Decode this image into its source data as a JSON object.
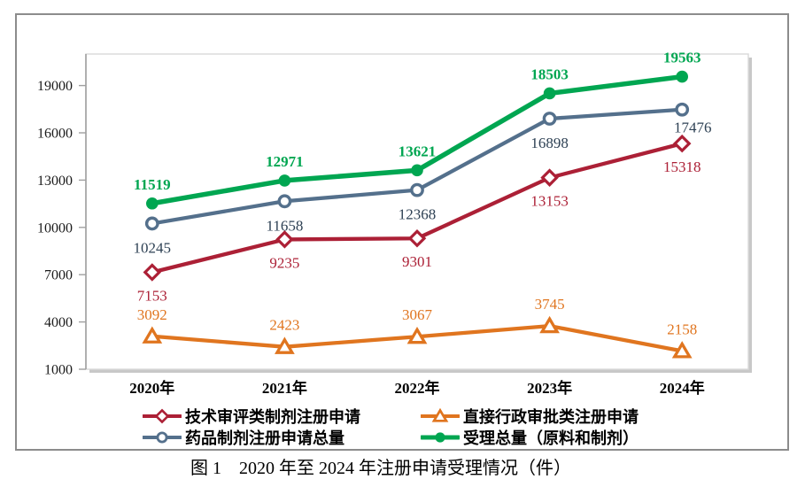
{
  "figure": {
    "caption": "图 1　2020 年至 2024 年注册申请受理情况（件）"
  },
  "chart_data": {
    "type": "line",
    "title": "",
    "categories": [
      "2020年",
      "2021年",
      "2022年",
      "2023年",
      "2024年"
    ],
    "series": [
      {
        "name": "技术审评类制剂注册申请",
        "values": [
          7153,
          9235,
          9301,
          13153,
          15318
        ],
        "color": "#AC2036",
        "marker": "diamond-open",
        "label_position": "below"
      },
      {
        "name": "直接行政审批类注册申请",
        "values": [
          3092,
          2423,
          3067,
          3745,
          2158
        ],
        "color": "#E0751F",
        "marker": "triangle-open",
        "label_position": "above"
      },
      {
        "name": "药品制剂注册申请总量",
        "values": [
          10245,
          11658,
          12368,
          16898,
          17476
        ],
        "color": "#54708C",
        "label_color": "#2E4154",
        "marker": "circle-open",
        "label_position": "below"
      },
      {
        "name": "受理总量（原料和制剂）",
        "values": [
          11519,
          12971,
          13621,
          18503,
          19563
        ],
        "color": "#00A651",
        "marker": "circle-filled",
        "label_position": "above",
        "label_bold": true
      }
    ],
    "ylim": [
      1000,
      21000
    ],
    "yticks": [
      1000,
      4000,
      7000,
      10000,
      13000,
      16000,
      19000
    ],
    "grid": false,
    "legend_position": "bottom-two-columns"
  }
}
